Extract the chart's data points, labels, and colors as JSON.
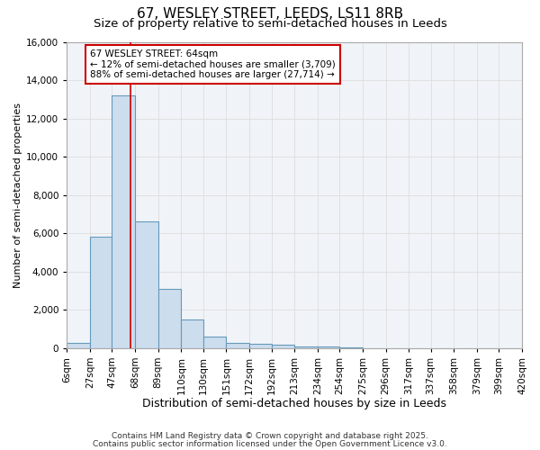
{
  "title1": "67, WESLEY STREET, LEEDS, LS11 8RB",
  "title2": "Size of property relative to semi-detached houses in Leeds",
  "xlabel": "Distribution of semi-detached houses by size in Leeds",
  "ylabel": "Number of semi-detached properties",
  "bin_edges": [
    6,
    27,
    47,
    68,
    89,
    110,
    130,
    151,
    172,
    192,
    213,
    234,
    254,
    275,
    296,
    317,
    337,
    358,
    379,
    399,
    420
  ],
  "bar_heights": [
    250,
    5800,
    13200,
    6600,
    3100,
    1500,
    600,
    250,
    200,
    150,
    100,
    100,
    50,
    0,
    0,
    0,
    0,
    0,
    0,
    0
  ],
  "bar_color": "#ccdded",
  "bar_edgecolor": "#6699bb",
  "property_size": 64,
  "vline_color": "#cc0000",
  "ann_line1": "67 WESLEY STREET: 64sqm",
  "ann_line2": "← 12% of semi-detached houses are smaller (3,709)",
  "ann_line3": "88% of semi-detached houses are larger (27,714) →",
  "annotation_box_color": "#cc0000",
  "ylim": [
    0,
    16000
  ],
  "yticks": [
    0,
    2000,
    4000,
    6000,
    8000,
    10000,
    12000,
    14000,
    16000
  ],
  "grid_color": "#dddddd",
  "bg_color": "#ffffff",
  "plot_bg_color": "#f0f4f8",
  "footnote1": "Contains HM Land Registry data © Crown copyright and database right 2025.",
  "footnote2": "Contains public sector information licensed under the Open Government Licence v3.0.",
  "title1_fontsize": 11,
  "title2_fontsize": 9.5,
  "xlabel_fontsize": 9,
  "ylabel_fontsize": 8,
  "tick_fontsize": 7.5,
  "annotation_fontsize": 7.5,
  "footnote_fontsize": 6.5
}
